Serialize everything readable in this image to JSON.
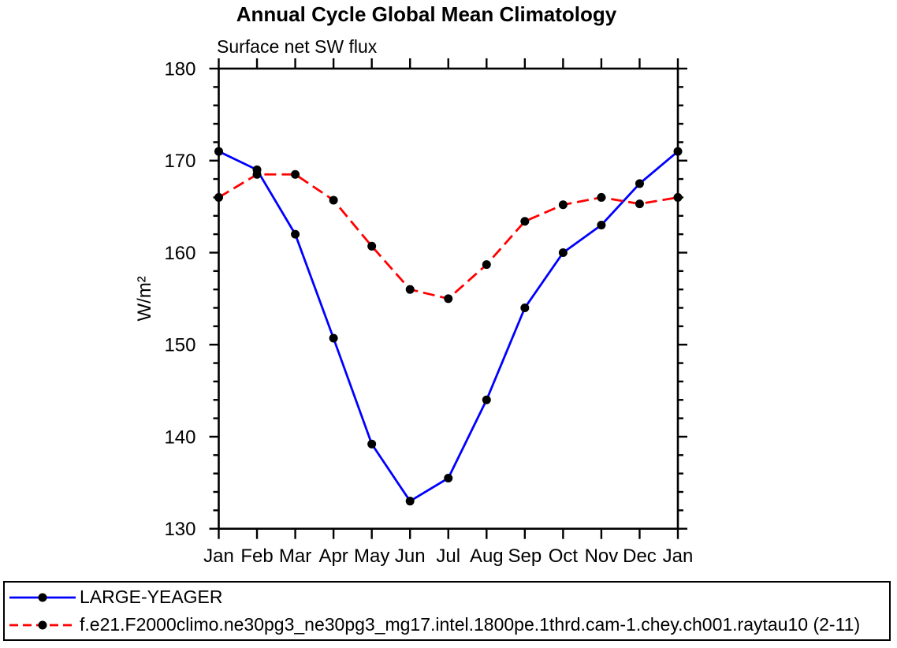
{
  "title": "Annual Cycle Global Mean Climatology",
  "subtitle": "Surface net SW flux",
  "chart_data": {
    "type": "line",
    "title": "Annual Cycle Global Mean Climatology",
    "subtitle": "Surface net SW flux",
    "xlabel": "",
    "ylabel": "W/m²",
    "categories": [
      "Jan",
      "Feb",
      "Mar",
      "Apr",
      "May",
      "Jun",
      "Jul",
      "Aug",
      "Sep",
      "Oct",
      "Nov",
      "Dec",
      "Jan"
    ],
    "ylim": [
      130,
      180
    ],
    "ytick_major": 10,
    "ytick_minor": 2,
    "grid": false,
    "legend_position": "bottom-left-box",
    "marker": {
      "shape": "circle",
      "color": "#000000"
    },
    "axis_color": "#000000",
    "series": [
      {
        "name": "LARGE-YEAGER",
        "color": "#0000ff",
        "dash": "solid",
        "values": [
          171.0,
          169.0,
          162.0,
          150.7,
          139.2,
          133.0,
          135.5,
          144.0,
          154.0,
          160.0,
          163.0,
          167.5,
          171.0
        ]
      },
      {
        "name": "f.e21.F2000climo.ne30pg3_ne30pg3_mg17.intel.1800pe.1thrd.cam-1.chey.ch001.raytau10 (2-11)",
        "color": "#ff0000",
        "dash": "dashed",
        "values": [
          166.0,
          168.5,
          168.5,
          165.7,
          160.7,
          156.0,
          155.0,
          158.7,
          163.4,
          165.2,
          166.0,
          165.3,
          166.0
        ]
      }
    ]
  }
}
